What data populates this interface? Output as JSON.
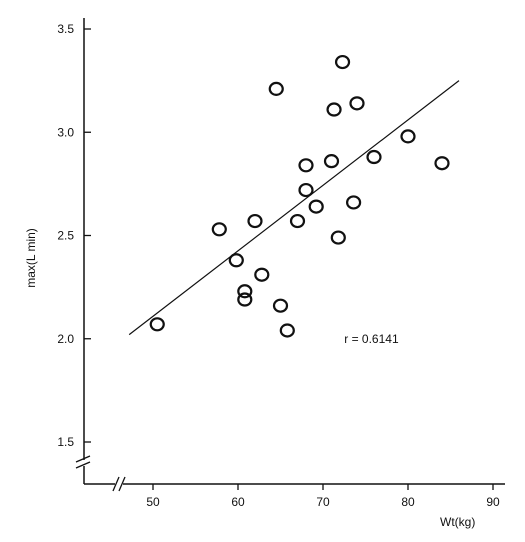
{
  "chart_data": {
    "type": "scatter",
    "title": "",
    "xlabel": "Wt(kg)",
    "ylabel": "max(L min)",
    "xlim": [
      40,
      90
    ],
    "ylim": [
      1.4,
      3.5
    ],
    "x_ticks": [
      50,
      60,
      70,
      80,
      90
    ],
    "y_ticks": [
      1.5,
      2.0,
      2.5,
      3.0,
      3.5
    ],
    "x_tick_labels": [
      "50",
      "60",
      "70",
      "80",
      "90"
    ],
    "y_tick_labels": [
      "1.5",
      "2.0",
      "2.5",
      "3.0",
      "3.5"
    ],
    "axis_breaks": true,
    "grid": false,
    "marker": "open-circle",
    "points": [
      {
        "x": 50.5,
        "y": 2.07
      },
      {
        "x": 57.8,
        "y": 2.53
      },
      {
        "x": 59.8,
        "y": 2.38
      },
      {
        "x": 60.8,
        "y": 2.23
      },
      {
        "x": 60.8,
        "y": 2.19
      },
      {
        "x": 62.0,
        "y": 2.57
      },
      {
        "x": 62.8,
        "y": 2.31
      },
      {
        "x": 64.5,
        "y": 3.21
      },
      {
        "x": 65.0,
        "y": 2.16
      },
      {
        "x": 65.8,
        "y": 2.04
      },
      {
        "x": 67.0,
        "y": 2.57
      },
      {
        "x": 68.0,
        "y": 2.84
      },
      {
        "x": 68.0,
        "y": 2.72
      },
      {
        "x": 69.2,
        "y": 2.64
      },
      {
        "x": 71.0,
        "y": 2.86
      },
      {
        "x": 71.3,
        "y": 3.11
      },
      {
        "x": 71.8,
        "y": 2.49
      },
      {
        "x": 72.3,
        "y": 3.34
      },
      {
        "x": 73.6,
        "y": 2.66
      },
      {
        "x": 74.0,
        "y": 3.14
      },
      {
        "x": 76.0,
        "y": 2.88
      },
      {
        "x": 80.0,
        "y": 2.98
      },
      {
        "x": 84.0,
        "y": 2.85
      }
    ],
    "regression_line": {
      "x1": 47.2,
      "y1": 2.02,
      "x2": 86.0,
      "y2": 3.25
    },
    "annotation": {
      "text": "r = 0.6141",
      "x": 72.5,
      "y": 2.0
    }
  }
}
